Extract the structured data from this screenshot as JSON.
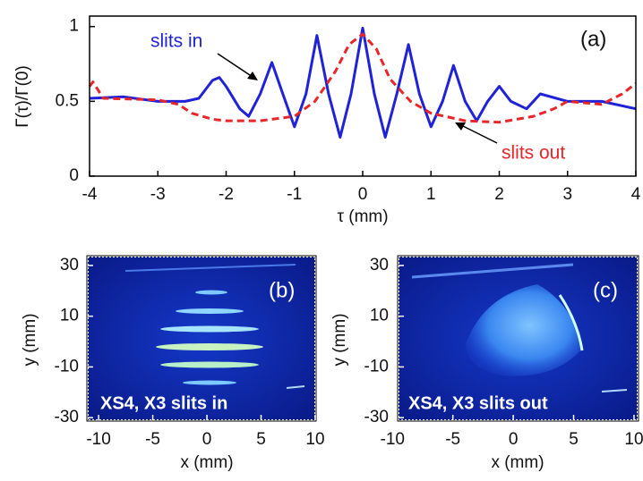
{
  "chart_data": [
    {
      "type": "line",
      "panel_label": "(a)",
      "x_label": "τ (mm)",
      "y_label": "Γ(τ)/Γ(0)",
      "xlim": [
        -4,
        4
      ],
      "xticks": [
        -4,
        -3,
        -2,
        -1,
        0,
        1,
        2,
        3,
        4
      ],
      "ylim": [
        0,
        1.07
      ],
      "yticks": [
        0,
        0.5,
        1
      ],
      "grid": false,
      "series": [
        {
          "name": "slits in",
          "color": "#1f22d6",
          "dashed": false,
          "x": [
            -4,
            -3.5,
            -3,
            -2.6,
            -2.4,
            -2.2,
            -2.1,
            -2.0,
            -1.8,
            -1.67,
            -1.5,
            -1.33,
            -1.17,
            -1.0,
            -0.83,
            -0.67,
            -0.5,
            -0.33,
            -0.17,
            0,
            0.17,
            0.33,
            0.5,
            0.67,
            0.83,
            1.0,
            1.17,
            1.33,
            1.5,
            1.67,
            1.83,
            2.0,
            2.17,
            2.4,
            2.6,
            3.0,
            3.5,
            4.0
          ],
          "values": [
            0.52,
            0.53,
            0.5,
            0.5,
            0.52,
            0.64,
            0.66,
            0.6,
            0.45,
            0.4,
            0.55,
            0.76,
            0.55,
            0.33,
            0.55,
            0.94,
            0.55,
            0.26,
            0.55,
            0.99,
            0.55,
            0.26,
            0.55,
            0.88,
            0.55,
            0.33,
            0.5,
            0.74,
            0.5,
            0.37,
            0.5,
            0.6,
            0.5,
            0.45,
            0.55,
            0.5,
            0.5,
            0.45
          ]
        },
        {
          "name": "slits out",
          "color": "#e8262a",
          "dashed": true,
          "x": [
            -4,
            -3.95,
            -3.8,
            -3.0,
            -2.7,
            -2.5,
            -2.2,
            -2.0,
            -1.5,
            -1.0,
            -0.7,
            -0.4,
            -0.2,
            0,
            0.2,
            0.4,
            0.7,
            1.0,
            1.5,
            2.0,
            2.5,
            2.8,
            3.0,
            3.5,
            3.8,
            4.0
          ],
          "values": [
            0.6,
            0.63,
            0.52,
            0.51,
            0.48,
            0.42,
            0.38,
            0.37,
            0.37,
            0.4,
            0.5,
            0.7,
            0.88,
            0.95,
            0.85,
            0.65,
            0.5,
            0.42,
            0.37,
            0.36,
            0.4,
            0.45,
            0.5,
            0.48,
            0.55,
            0.62
          ]
        }
      ]
    },
    {
      "type": "image",
      "panel_label": "(b)",
      "caption": "XS4, X3 slits in",
      "x_label": "x (mm)",
      "y_label": "y (mm)",
      "xlim": [
        -11,
        10
      ],
      "xticks": [
        -10,
        -5,
        0,
        5,
        10
      ],
      "ylim": [
        -31,
        33.5
      ],
      "yticks": [
        -30,
        -10,
        10,
        30
      ]
    },
    {
      "type": "image",
      "panel_label": "(c)",
      "caption": "XS4, X3 slits out",
      "x_label": "x (mm)",
      "y_label": "y (mm)",
      "xlim": [
        -9.5,
        10.3
      ],
      "xticks": [
        -10,
        -5,
        0,
        5,
        10
      ],
      "ylim": [
        -31,
        33.5
      ],
      "yticks": [
        -30,
        -10,
        10,
        30
      ]
    }
  ]
}
